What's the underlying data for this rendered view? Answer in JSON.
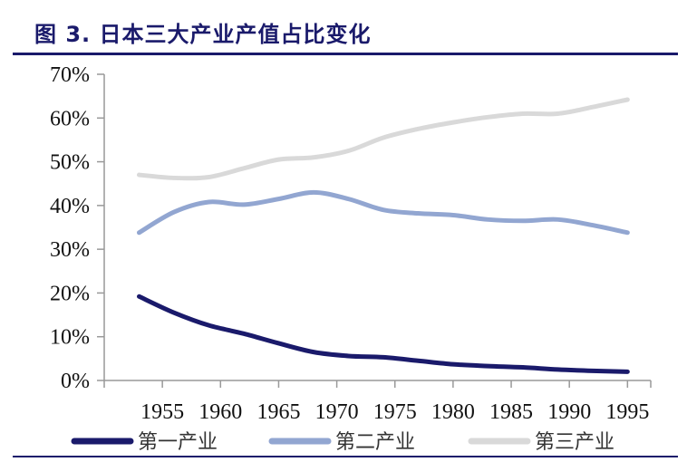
{
  "title": "图 3. 日本三大产业产值占比变化",
  "colors": {
    "accent": "#1a1a6b"
  },
  "chart_data": {
    "type": "line",
    "x": [
      1953,
      1956,
      1959,
      1962,
      1965,
      1968,
      1971,
      1974,
      1977,
      1980,
      1983,
      1986,
      1989,
      1992,
      1995
    ],
    "x_ticks": [
      "1955",
      "1960",
      "1965",
      "1970",
      "1975",
      "1980",
      "1985",
      "1990",
      "1995"
    ],
    "y_ticks": [
      "0%",
      "10%",
      "20%",
      "30%",
      "40%",
      "50%",
      "60%",
      "70%"
    ],
    "ylim": [
      0,
      70
    ],
    "grid": false,
    "legend_position": "bottom",
    "series": [
      {
        "name": "第一产业",
        "color": "#1a1a6b",
        "values": [
          19.2,
          15.5,
          12.6,
          10.7,
          8.5,
          6.5,
          5.6,
          5.3,
          4.5,
          3.7,
          3.3,
          3.0,
          2.5,
          2.2,
          2.0
        ]
      },
      {
        "name": "第二产业",
        "color": "#92a6d1",
        "values": [
          33.8,
          38.5,
          40.8,
          40.2,
          41.5,
          43.0,
          41.5,
          39.0,
          38.2,
          37.8,
          36.8,
          36.5,
          36.8,
          35.5,
          33.8
        ]
      },
      {
        "name": "第三产业",
        "color": "#d9d9d9",
        "values": [
          47.0,
          46.3,
          46.5,
          48.5,
          50.5,
          51.0,
          52.5,
          55.5,
          57.5,
          59.0,
          60.2,
          61.0,
          61.0,
          62.5,
          64.2
        ]
      }
    ]
  }
}
